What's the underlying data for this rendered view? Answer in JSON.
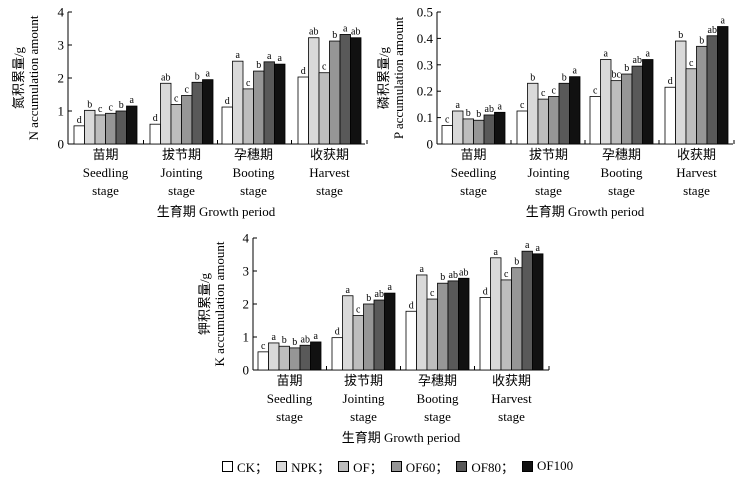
{
  "legend": [
    {
      "label": "CK；",
      "color": "#ffffff"
    },
    {
      "label": "NPK；",
      "color": "#d9d9d9"
    },
    {
      "label": "OF；",
      "color": "#bdbdbd"
    },
    {
      "label": "OF60；",
      "color": "#969696"
    },
    {
      "label": "OF80；",
      "color": "#595959"
    },
    {
      "label": "OF100",
      "color": "#111111"
    }
  ],
  "chart_data": [
    {
      "type": "bar",
      "xlabel": "生育期 Growth period",
      "ylabel_cn": "氮积累量/g",
      "ylabel_en": "N accumulation amount",
      "ylim": [
        0,
        4
      ],
      "yticks": [
        "0",
        "1",
        "2",
        "3",
        "4"
      ],
      "categories": [
        {
          "cn": "苗期",
          "en1": "Seedling",
          "en2": "stage"
        },
        {
          "cn": "拔节期",
          "en1": "Jointing",
          "en2": "stage"
        },
        {
          "cn": "孕穗期",
          "en1": "Booting",
          "en2": "stage"
        },
        {
          "cn": "收获期",
          "en1": "Harvest",
          "en2": "stage"
        }
      ],
      "series": [
        {
          "name": "CK",
          "values": [
            0.55,
            0.6,
            1.12,
            2.03
          ]
        },
        {
          "name": "NPK",
          "values": [
            1.02,
            1.84,
            2.51,
            3.22
          ]
        },
        {
          "name": "OF",
          "values": [
            0.88,
            1.2,
            1.67,
            2.16
          ]
        },
        {
          "name": "OF60",
          "values": [
            0.93,
            1.47,
            2.21,
            3.12
          ]
        },
        {
          "name": "OF80",
          "values": [
            1.0,
            1.87,
            2.49,
            3.32
          ]
        },
        {
          "name": "OF100",
          "values": [
            1.15,
            1.95,
            2.42,
            3.22
          ]
        }
      ],
      "labels": [
        [
          "d",
          "b",
          "c",
          "c",
          "b",
          "a"
        ],
        [
          "d",
          "ab",
          "c",
          "c",
          "b",
          "a"
        ],
        [
          "d",
          "a",
          "c",
          "b",
          "a",
          "a"
        ],
        [
          "d",
          "ab",
          "c",
          "b",
          "a",
          "ab"
        ]
      ]
    },
    {
      "type": "bar",
      "xlabel": "生育期 Growth period",
      "ylabel_cn": "磷积累量/g",
      "ylabel_en": "P accumulation amount",
      "ylim": [
        0,
        0.5
      ],
      "yticks": [
        "0",
        "0.1",
        "0.2",
        "0.3",
        "0.4",
        "0.5"
      ],
      "categories": [
        {
          "cn": "苗期",
          "en1": "Seedling",
          "en2": "stage"
        },
        {
          "cn": "拔节期",
          "en1": "Jointing",
          "en2": "stage"
        },
        {
          "cn": "孕穗期",
          "en1": "Booting",
          "en2": "stage"
        },
        {
          "cn": "收获期",
          "en1": "Harvest",
          "en2": "stage"
        }
      ],
      "series": [
        {
          "name": "CK",
          "values": [
            0.07,
            0.125,
            0.18,
            0.215
          ]
        },
        {
          "name": "NPK",
          "values": [
            0.125,
            0.23,
            0.32,
            0.39
          ]
        },
        {
          "name": "OF",
          "values": [
            0.095,
            0.17,
            0.24,
            0.285
          ]
        },
        {
          "name": "OF60",
          "values": [
            0.09,
            0.18,
            0.265,
            0.37
          ]
        },
        {
          "name": "OF80",
          "values": [
            0.11,
            0.23,
            0.295,
            0.41
          ]
        },
        {
          "name": "OF100",
          "values": [
            0.12,
            0.255,
            0.32,
            0.445
          ]
        }
      ],
      "labels": [
        [
          "c",
          "a",
          "b",
          "b",
          "ab",
          "a"
        ],
        [
          "c",
          "b",
          "c",
          "c",
          "b",
          "a"
        ],
        [
          "c",
          "a",
          "bc",
          "b",
          "ab",
          "a"
        ],
        [
          "d",
          "b",
          "c",
          "b",
          "ab",
          "a"
        ]
      ]
    },
    {
      "type": "bar",
      "xlabel": "生育期 Growth period",
      "ylabel_cn": "钾积累量/g",
      "ylabel_en": "K accumulation amount",
      "ylim": [
        0,
        4
      ],
      "yticks": [
        "0",
        "1",
        "2",
        "3",
        "4"
      ],
      "categories": [
        {
          "cn": "苗期",
          "en1": "Seedling",
          "en2": "stage"
        },
        {
          "cn": "拔节期",
          "en1": "Jointing",
          "en2": "stage"
        },
        {
          "cn": "孕穗期",
          "en1": "Booting",
          "en2": "stage"
        },
        {
          "cn": "收获期",
          "en1": "Harvest",
          "en2": "stage"
        }
      ],
      "series": [
        {
          "name": "CK",
          "values": [
            0.55,
            0.98,
            1.78,
            2.2
          ]
        },
        {
          "name": "NPK",
          "values": [
            0.82,
            2.25,
            2.88,
            3.4
          ]
        },
        {
          "name": "OF",
          "values": [
            0.72,
            1.65,
            2.15,
            2.73
          ]
        },
        {
          "name": "OF60",
          "values": [
            0.67,
            2.0,
            2.63,
            3.1
          ]
        },
        {
          "name": "OF80",
          "values": [
            0.75,
            2.12,
            2.7,
            3.6
          ]
        },
        {
          "name": "OF100",
          "values": [
            0.85,
            2.33,
            2.78,
            3.52
          ]
        }
      ],
      "labels": [
        [
          "c",
          "a",
          "b",
          "b",
          "ab",
          "a"
        ],
        [
          "d",
          "a",
          "c",
          "b",
          "ab",
          "a"
        ],
        [
          "d",
          "a",
          "c",
          "b",
          "ab",
          "ab"
        ],
        [
          "d",
          "a",
          "c",
          "b",
          "a",
          "a"
        ]
      ]
    }
  ]
}
